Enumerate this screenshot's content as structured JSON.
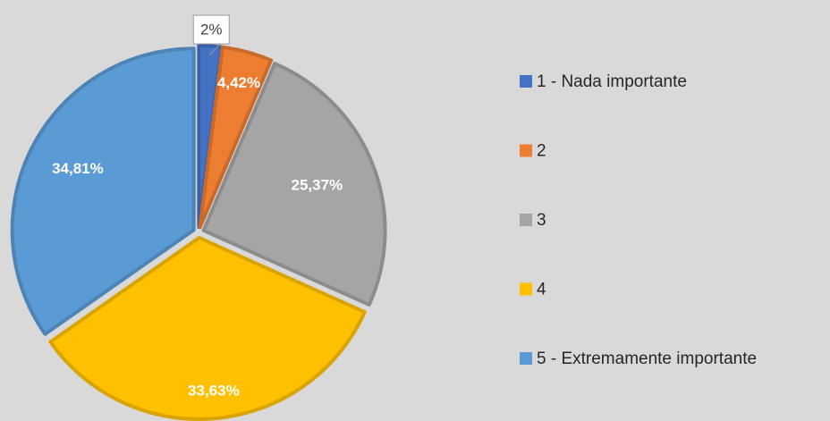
{
  "chart_data": {
    "type": "pie",
    "categories": [
      "1 - Nada importante",
      "2",
      "3",
      "4",
      "5 - Extremamente importante"
    ],
    "values": [
      2,
      4.42,
      25.37,
      33.63,
      34.81
    ],
    "value_labels": [
      "2%",
      "4,42%",
      "25,37%",
      "33,63%",
      "34,81%"
    ],
    "colors": [
      "#4472c4",
      "#ed7d31",
      "#a5a5a5",
      "#ffc000",
      "#5b9bd5"
    ],
    "legend": "right"
  }
}
